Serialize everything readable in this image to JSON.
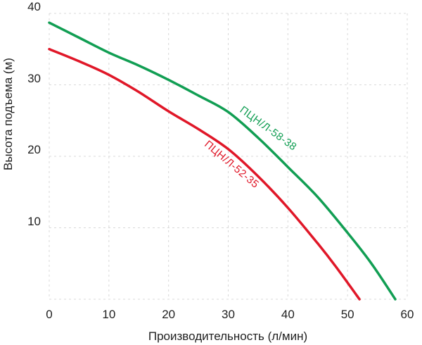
{
  "chart_data": {
    "type": "line",
    "title": "",
    "xlabel": "Производительность (л/мин)",
    "ylabel": "Высота подъема (м)",
    "xlim": [
      0,
      60
    ],
    "ylim": [
      0,
      40
    ],
    "x_ticks": [
      0,
      10,
      20,
      30,
      40,
      50,
      60
    ],
    "y_ticks": [
      10,
      20,
      30,
      40
    ],
    "grid": "dashed",
    "grid_color": "#d9d9d9",
    "legend_position": "labels-on-curves",
    "series": [
      {
        "name": "ПЦН/Л-58-38",
        "color": "#119e53",
        "points": [
          [
            0,
            38.7
          ],
          [
            5,
            36.6
          ],
          [
            10,
            34.5
          ],
          [
            15,
            32.7
          ],
          [
            20,
            30.7
          ],
          [
            25,
            28.5
          ],
          [
            30,
            26.2
          ],
          [
            35,
            22.6
          ],
          [
            40,
            18.5
          ],
          [
            45,
            14.3
          ],
          [
            50,
            9.3
          ],
          [
            54,
            5.0
          ],
          [
            58,
            0
          ]
        ]
      },
      {
        "name": "ПЦН/Л-52-35",
        "color": "#e01728",
        "points": [
          [
            0,
            35.0
          ],
          [
            5,
            33.3
          ],
          [
            10,
            31.4
          ],
          [
            15,
            29.0
          ],
          [
            20,
            26.3
          ],
          [
            25,
            23.8
          ],
          [
            30,
            21.0
          ],
          [
            35,
            17.2
          ],
          [
            40,
            12.8
          ],
          [
            45,
            7.8
          ],
          [
            48,
            4.6
          ],
          [
            52,
            0
          ]
        ]
      }
    ]
  }
}
